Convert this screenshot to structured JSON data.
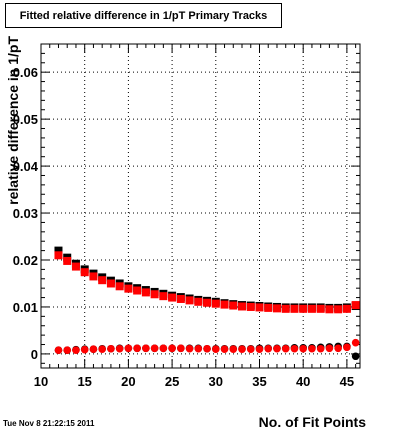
{
  "timestamp": "Tue Nov  8 21:22:15 2011",
  "chart_data": {
    "type": "scatter",
    "title": "Fitted relative difference in 1/pT Primary Tracks",
    "xlabel": "No. of Fit Points",
    "ylabel": "relative difference in 1/pT",
    "xlim": [
      10,
      46.5
    ],
    "ylim": [
      -0.003,
      0.066
    ],
    "grid": true,
    "x_ticks": [
      10,
      15,
      20,
      25,
      30,
      35,
      40,
      45
    ],
    "y_ticks": [
      0,
      0.01,
      0.02,
      0.03,
      0.04,
      0.05,
      0.06
    ],
    "x_tick_labels": [
      "10",
      "15",
      "20",
      "25",
      "30",
      "35",
      "40",
      "45"
    ],
    "y_tick_labels": [
      "0",
      "0.01",
      "0.02",
      "0.03",
      "0.04",
      "0.05",
      "0.06"
    ],
    "x": [
      12,
      13,
      14,
      15,
      16,
      17,
      18,
      19,
      20,
      21,
      22,
      23,
      24,
      25,
      26,
      27,
      28,
      29,
      30,
      31,
      32,
      33,
      34,
      35,
      36,
      37,
      38,
      39,
      40,
      41,
      42,
      43,
      44,
      45,
      46
    ],
    "series": [
      {
        "marker": "square",
        "color": "#000000",
        "values": [
          0.022,
          0.0205,
          0.0192,
          0.018,
          0.0171,
          0.0163,
          0.0156,
          0.015,
          0.0144,
          0.014,
          0.0136,
          0.0132,
          0.0128,
          0.0124,
          0.0121,
          0.0118,
          0.0115,
          0.0113,
          0.0111,
          0.0108,
          0.0106,
          0.0104,
          0.0103,
          0.0102,
          0.0101,
          0.01,
          0.0099,
          0.0099,
          0.0099,
          0.0099,
          0.0099,
          0.0098,
          0.0098,
          0.0099,
          0.0102
        ]
      },
      {
        "marker": "square",
        "color": "#ff0000",
        "values": [
          0.021,
          0.0198,
          0.0186,
          0.0174,
          0.0165,
          0.0157,
          0.015,
          0.0144,
          0.0139,
          0.0135,
          0.0131,
          0.0127,
          0.0123,
          0.012,
          0.0117,
          0.0114,
          0.0111,
          0.0109,
          0.0107,
          0.0105,
          0.0103,
          0.0101,
          0.01,
          0.0099,
          0.0098,
          0.0097,
          0.0096,
          0.0096,
          0.0096,
          0.0096,
          0.0096,
          0.0095,
          0.0095,
          0.0096,
          0.0104
        ]
      },
      {
        "marker": "circle",
        "color": "#000000",
        "values": [
          0.0008,
          0.0008,
          0.0009,
          0.001,
          0.001,
          0.0011,
          0.0011,
          0.0012,
          0.0012,
          0.0012,
          0.0012,
          0.0012,
          0.0012,
          0.0012,
          0.0012,
          0.0012,
          0.0012,
          0.0011,
          0.0011,
          0.0011,
          0.0011,
          0.0011,
          0.0011,
          0.0012,
          0.0012,
          0.0012,
          0.0012,
          0.0013,
          0.0013,
          0.0013,
          0.0014,
          0.0015,
          0.0016,
          0.0016,
          -0.0005
        ]
      },
      {
        "marker": "circle",
        "color": "#ff0000",
        "values": [
          0.0008,
          0.0008,
          0.0008,
          0.0009,
          0.001,
          0.001,
          0.0011,
          0.0011,
          0.0012,
          0.0012,
          0.0012,
          0.0012,
          0.0012,
          0.0012,
          0.0012,
          0.0011,
          0.0011,
          0.0011,
          0.001,
          0.001,
          0.001,
          0.001,
          0.001,
          0.001,
          0.0011,
          0.0011,
          0.0011,
          0.0011,
          0.0011,
          0.0011,
          0.0011,
          0.0012,
          0.0012,
          0.0014,
          0.0024
        ]
      }
    ]
  }
}
